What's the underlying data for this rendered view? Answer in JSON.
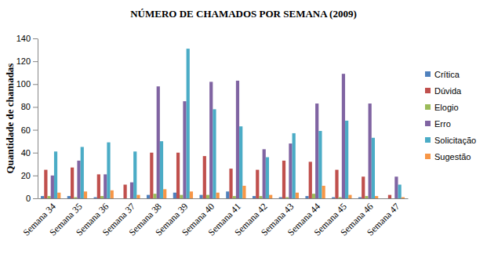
{
  "chart_data": {
    "type": "bar",
    "title": "NÚMERO DE CHAMADOS POR SEMANA (2009)",
    "y_label": "Quantidade de chamadas",
    "categories": [
      "Semana 34",
      "Semana 35",
      "Semana 36",
      "Semana 37",
      "Semana 38",
      "Semana 39",
      "Semana 40",
      "Semana 41",
      "Semana 42",
      "Semana 43",
      "Semana 44",
      "Semana 45",
      "Semana 46",
      "Semana 47"
    ],
    "series": [
      {
        "name": "Crítica",
        "color": "#4f81bd",
        "values": [
          2,
          2,
          1,
          0,
          3,
          5,
          3,
          6,
          2,
          1,
          2,
          1,
          1,
          0
        ]
      },
      {
        "name": "Dúvida",
        "color": "#c0504d",
        "values": [
          25,
          27,
          21,
          12,
          40,
          40,
          37,
          26,
          25,
          33,
          32,
          25,
          19,
          3
        ]
      },
      {
        "name": "Elogio",
        "color": "#9bbb59",
        "values": [
          2,
          1,
          2,
          0,
          4,
          3,
          3,
          2,
          2,
          1,
          4,
          1,
          2,
          0
        ]
      },
      {
        "name": "Erro",
        "color": "#8064a2",
        "values": [
          20,
          33,
          21,
          14,
          98,
          85,
          102,
          103,
          43,
          48,
          83,
          109,
          83,
          19
        ]
      },
      {
        "name": "Solicitação",
        "color": "#4bacc6",
        "values": [
          41,
          45,
          49,
          41,
          50,
          131,
          78,
          63,
          36,
          57,
          59,
          68,
          53,
          12
        ]
      },
      {
        "name": "Sugestão",
        "color": "#f79646",
        "values": [
          5,
          6,
          7,
          3,
          8,
          6,
          5,
          11,
          3,
          5,
          11,
          3,
          2,
          1
        ]
      }
    ],
    "ylim": [
      0,
      140
    ],
    "yticks": [
      0,
      20,
      40,
      60,
      80,
      100,
      120,
      140
    ],
    "grid": false,
    "legend": "right"
  }
}
